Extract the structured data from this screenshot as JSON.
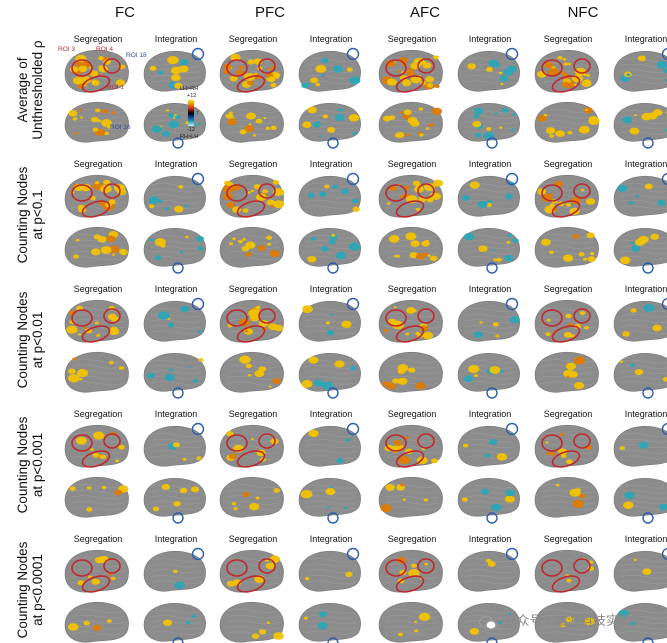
{
  "columns": [
    "FC",
    "PFC",
    "AFC",
    "NFC"
  ],
  "sub_columns": [
    "Segregation",
    "Integration"
  ],
  "rows": [
    {
      "line1": "Average of",
      "line2": "Unthresholded ρ"
    },
    {
      "line1": "Counting Nodes",
      "line2": "at p<0.1"
    },
    {
      "line1": "Counting Nodes",
      "line2": "at p<0.01"
    },
    {
      "line1": "Counting Nodes",
      "line2": "at p<0.001"
    },
    {
      "line1": "Counting Nodes",
      "line2": "at p<0.0001"
    }
  ],
  "roi_labels": {
    "roi3": "ROI 3",
    "roi4": "ROI 4",
    "roi1": "ROI 1",
    "roi18": "ROI 18",
    "roi16": "ROI 16"
  },
  "colorbar": {
    "top_label": "LH>RH",
    "max": "+12",
    "min": "-12",
    "bottom_label": "RH>LH",
    "side": "r"
  },
  "watermark": "公众号 · 脑海科技实验室",
  "colors": {
    "brain": "#8c8c8c",
    "brain_dark": "#777777",
    "positive": "#f2c200",
    "positive_hot": "#e07b00",
    "negative": "#2aa6b8",
    "roi_red": "#c0282d",
    "roi_blue": "#2a5db0"
  }
}
